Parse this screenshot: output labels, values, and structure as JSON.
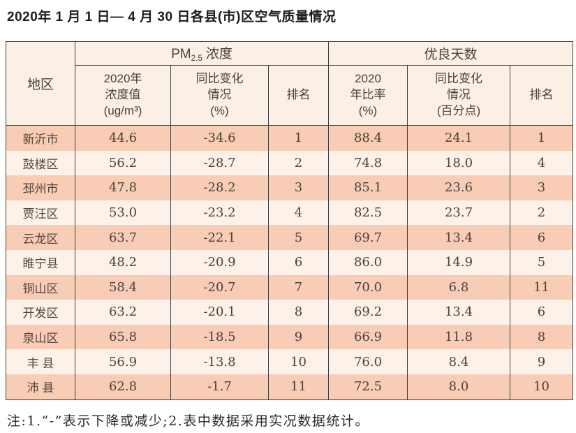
{
  "page": {
    "title": "2020年 1 月 1 日— 4 月 30 日各县(市)区空气质量情况",
    "note": "注:1.“-”表示下降或减少;2.表中数据采用实况数据统计。"
  },
  "table": {
    "region_header": "地区",
    "pm_group": {
      "prefix": "PM",
      "sub": "2.5",
      "suffix": "浓度"
    },
    "good_group": "优良天数",
    "sub_headers": {
      "pm_value": "2020年\n浓度值\n(ug/m³)",
      "pm_change": "同比变化\n情况\n(%)",
      "pm_rank": "排名",
      "good_rate": "2020\n年比率\n(%)",
      "good_change": "同比变化\n情况\n(百分点)",
      "good_rank": "排名"
    }
  },
  "chart_data": {
    "type": "table",
    "title": "2020年1月1日—4月30日各县(市)区空气质量情况",
    "column_groups": [
      "PM2.5浓度",
      "优良天数"
    ],
    "columns": [
      "地区",
      "2020年浓度值(ug/m³)",
      "同比变化情况(%)",
      "排名",
      "2020年比率(%)",
      "同比变化情况(百分点)",
      "排名"
    ],
    "rows": [
      [
        "新沂市",
        "44.6",
        "-34.6",
        "1",
        "88.4",
        "24.1",
        "1"
      ],
      [
        "鼓楼区",
        "56.2",
        "-28.7",
        "2",
        "74.8",
        "18.0",
        "4"
      ],
      [
        "邳州市",
        "47.8",
        "-28.2",
        "3",
        "85.1",
        "23.6",
        "3"
      ],
      [
        "贾汪区",
        "53.0",
        "-23.2",
        "4",
        "82.5",
        "23.7",
        "2"
      ],
      [
        "云龙区",
        "63.7",
        "-22.1",
        "5",
        "69.7",
        "13.4",
        "6"
      ],
      [
        "睢宁县",
        "48.2",
        "-20.9",
        "6",
        "86.0",
        "14.9",
        "5"
      ],
      [
        "铜山区",
        "58.4",
        "-20.7",
        "7",
        "70.0",
        "6.8",
        "11"
      ],
      [
        "开发区",
        "63.2",
        "-20.1",
        "8",
        "69.2",
        "13.4",
        "6"
      ],
      [
        "泉山区",
        "65.8",
        "-18.5",
        "9",
        "66.9",
        "11.8",
        "8"
      ],
      [
        "丰 县",
        "56.9",
        "-13.8",
        "10",
        "76.0",
        "8.4",
        "9"
      ],
      [
        "沛 县",
        "62.8",
        "-1.7",
        "11",
        "72.5",
        "8.0",
        "10"
      ]
    ],
    "note": "注:1.“-”表示下降或减少;2.表中数据采用实况数据统计。"
  },
  "colors": {
    "row_odd_bg": "#f8ccb5",
    "row_even_bg": "#fdf2ea",
    "header_bg": "#fbf0e5",
    "border": "#3f3f3f",
    "text": "#4a423b"
  }
}
